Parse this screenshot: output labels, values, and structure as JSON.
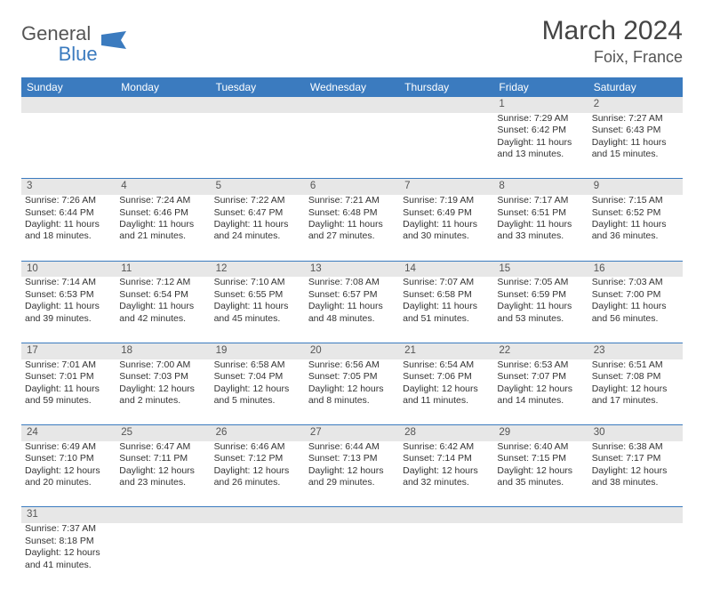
{
  "logo": {
    "textA": "General",
    "textB": "Blue",
    "flag_color": "#3b7bbf",
    "text_color": "#555555"
  },
  "title": "March 2024",
  "location": "Foix, France",
  "colors": {
    "header_bg": "#3b7bbf",
    "header_text": "#ffffff",
    "daynum_bg": "#e7e7e7",
    "cell_border": "#3b7bbf",
    "body_text": "#333333",
    "background": "#ffffff"
  },
  "typography": {
    "title_fontsize": 30,
    "location_fontsize": 18,
    "weekday_fontsize": 12,
    "cell_fontsize": 10.5,
    "daynum_fontsize": 11.5
  },
  "weekdays": [
    "Sunday",
    "Monday",
    "Tuesday",
    "Wednesday",
    "Thursday",
    "Friday",
    "Saturday"
  ],
  "days": {
    "1": {
      "sunrise": "7:29 AM",
      "sunset": "6:42 PM",
      "daylight": "11 hours and 13 minutes."
    },
    "2": {
      "sunrise": "7:27 AM",
      "sunset": "6:43 PM",
      "daylight": "11 hours and 15 minutes."
    },
    "3": {
      "sunrise": "7:26 AM",
      "sunset": "6:44 PM",
      "daylight": "11 hours and 18 minutes."
    },
    "4": {
      "sunrise": "7:24 AM",
      "sunset": "6:46 PM",
      "daylight": "11 hours and 21 minutes."
    },
    "5": {
      "sunrise": "7:22 AM",
      "sunset": "6:47 PM",
      "daylight": "11 hours and 24 minutes."
    },
    "6": {
      "sunrise": "7:21 AM",
      "sunset": "6:48 PM",
      "daylight": "11 hours and 27 minutes."
    },
    "7": {
      "sunrise": "7:19 AM",
      "sunset": "6:49 PM",
      "daylight": "11 hours and 30 minutes."
    },
    "8": {
      "sunrise": "7:17 AM",
      "sunset": "6:51 PM",
      "daylight": "11 hours and 33 minutes."
    },
    "9": {
      "sunrise": "7:15 AM",
      "sunset": "6:52 PM",
      "daylight": "11 hours and 36 minutes."
    },
    "10": {
      "sunrise": "7:14 AM",
      "sunset": "6:53 PM",
      "daylight": "11 hours and 39 minutes."
    },
    "11": {
      "sunrise": "7:12 AM",
      "sunset": "6:54 PM",
      "daylight": "11 hours and 42 minutes."
    },
    "12": {
      "sunrise": "7:10 AM",
      "sunset": "6:55 PM",
      "daylight": "11 hours and 45 minutes."
    },
    "13": {
      "sunrise": "7:08 AM",
      "sunset": "6:57 PM",
      "daylight": "11 hours and 48 minutes."
    },
    "14": {
      "sunrise": "7:07 AM",
      "sunset": "6:58 PM",
      "daylight": "11 hours and 51 minutes."
    },
    "15": {
      "sunrise": "7:05 AM",
      "sunset": "6:59 PM",
      "daylight": "11 hours and 53 minutes."
    },
    "16": {
      "sunrise": "7:03 AM",
      "sunset": "7:00 PM",
      "daylight": "11 hours and 56 minutes."
    },
    "17": {
      "sunrise": "7:01 AM",
      "sunset": "7:01 PM",
      "daylight": "11 hours and 59 minutes."
    },
    "18": {
      "sunrise": "7:00 AM",
      "sunset": "7:03 PM",
      "daylight": "12 hours and 2 minutes."
    },
    "19": {
      "sunrise": "6:58 AM",
      "sunset": "7:04 PM",
      "daylight": "12 hours and 5 minutes."
    },
    "20": {
      "sunrise": "6:56 AM",
      "sunset": "7:05 PM",
      "daylight": "12 hours and 8 minutes."
    },
    "21": {
      "sunrise": "6:54 AM",
      "sunset": "7:06 PM",
      "daylight": "12 hours and 11 minutes."
    },
    "22": {
      "sunrise": "6:53 AM",
      "sunset": "7:07 PM",
      "daylight": "12 hours and 14 minutes."
    },
    "23": {
      "sunrise": "6:51 AM",
      "sunset": "7:08 PM",
      "daylight": "12 hours and 17 minutes."
    },
    "24": {
      "sunrise": "6:49 AM",
      "sunset": "7:10 PM",
      "daylight": "12 hours and 20 minutes."
    },
    "25": {
      "sunrise": "6:47 AM",
      "sunset": "7:11 PM",
      "daylight": "12 hours and 23 minutes."
    },
    "26": {
      "sunrise": "6:46 AM",
      "sunset": "7:12 PM",
      "daylight": "12 hours and 26 minutes."
    },
    "27": {
      "sunrise": "6:44 AM",
      "sunset": "7:13 PM",
      "daylight": "12 hours and 29 minutes."
    },
    "28": {
      "sunrise": "6:42 AM",
      "sunset": "7:14 PM",
      "daylight": "12 hours and 32 minutes."
    },
    "29": {
      "sunrise": "6:40 AM",
      "sunset": "7:15 PM",
      "daylight": "12 hours and 35 minutes."
    },
    "30": {
      "sunrise": "6:38 AM",
      "sunset": "7:17 PM",
      "daylight": "12 hours and 38 minutes."
    },
    "31": {
      "sunrise": "7:37 AM",
      "sunset": "8:18 PM",
      "daylight": "12 hours and 41 minutes."
    }
  },
  "labels": {
    "sunrise": "Sunrise:",
    "sunset": "Sunset:",
    "daylight": "Daylight:"
  },
  "layout": {
    "first_weekday_index": 5,
    "num_days": 31,
    "columns": 7
  }
}
